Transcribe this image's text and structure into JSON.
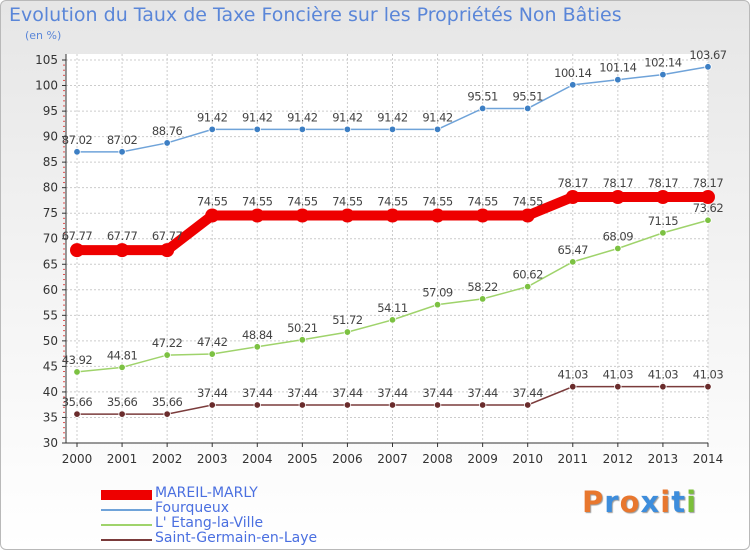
{
  "header": {
    "title": "Evolution du Taux de Taxe Foncière sur les Propriétés Non Bâties",
    "unit": "(en %)"
  },
  "logo": {
    "text": "Proxiti",
    "letter_colors": [
      "#e8772e",
      "#3d8ddc",
      "#e8772e",
      "#3d8ddc",
      "#e8772e",
      "#3d8ddc",
      "#7bbf3a"
    ]
  },
  "colors": {
    "grid": "#cccccc",
    "axis": "#333333",
    "tick_marker": "#e05050",
    "value_label": "#444444"
  },
  "chart_data": {
    "type": "line",
    "title": "Evolution du Taux de Taxe Foncière sur les Propriétés Non Bâties",
    "ylabel": "(en %)",
    "xlabel": "",
    "ylim": [
      30,
      105
    ],
    "ystep": 5,
    "grid": true,
    "legend_position": "bottom-left",
    "x": [
      "2000",
      "2001",
      "2002",
      "2003",
      "2004",
      "2005",
      "2006",
      "2007",
      "2008",
      "2009",
      "2010",
      "2011",
      "2012",
      "2013",
      "2014"
    ],
    "series": [
      {
        "name": "MAREIL-MARLY",
        "color": "#ee0000",
        "marker": "#ee0000",
        "highlight": true,
        "values": [
          67.77,
          67.77,
          67.77,
          74.55,
          74.55,
          74.55,
          74.55,
          74.55,
          74.55,
          74.55,
          74.55,
          78.17,
          78.17,
          78.17,
          78.17
        ],
        "labels": [
          "67.77",
          "67.77",
          "67.77",
          "74.55",
          "74.55",
          "74.55",
          "74.55",
          "74.55",
          "74.55",
          "74.55",
          "74.55",
          "78.17",
          "78.17",
          "78.17",
          "78.17"
        ]
      },
      {
        "name": "Fourqueux",
        "color": "#6fa3d9",
        "marker": "#3d7fc4",
        "highlight": false,
        "values": [
          87.02,
          87.02,
          88.76,
          91.42,
          91.42,
          91.42,
          91.42,
          91.42,
          91.42,
          95.51,
          95.51,
          100.14,
          101.14,
          102.14,
          103.67
        ],
        "labels": [
          "87.02",
          "87.02",
          "88.76",
          "91.42",
          "91.42",
          "91.42",
          "91.42",
          "91.42",
          "91.42",
          "95.51",
          "95.51",
          "100.14",
          "101.14",
          "102.14",
          "103.67"
        ]
      },
      {
        "name": "L' Etang-la-Ville",
        "color": "#9fd36b",
        "marker": "#7cc142",
        "highlight": false,
        "values": [
          43.92,
          44.81,
          47.22,
          47.42,
          48.84,
          50.21,
          51.72,
          54.11,
          57.09,
          58.22,
          60.62,
          65.47,
          68.09,
          71.15,
          73.62
        ],
        "labels": [
          "43.92",
          "44.81",
          "47.22",
          "47.42",
          "48.84",
          "50.21",
          "51.72",
          "54.11",
          "57.09",
          "58.22",
          "60.62",
          "65.47",
          "68.09",
          "71.15",
          "73.62"
        ]
      },
      {
        "name": "Saint-Germain-en-Laye",
        "color": "#7a3b3b",
        "marker": "#6a2c2c",
        "highlight": false,
        "values": [
          35.66,
          35.66,
          35.66,
          37.44,
          37.44,
          37.44,
          37.44,
          37.44,
          37.44,
          37.44,
          37.44,
          41.03,
          41.03,
          41.03,
          41.03
        ],
        "labels": [
          "35.66",
          "35.66",
          "35.66",
          "37.44",
          "37.44",
          "37.44",
          "37.44",
          "37.44",
          "37.44",
          "37.44",
          "37.44",
          "41.03",
          "41.03",
          "41.03",
          "41.03"
        ]
      }
    ]
  }
}
